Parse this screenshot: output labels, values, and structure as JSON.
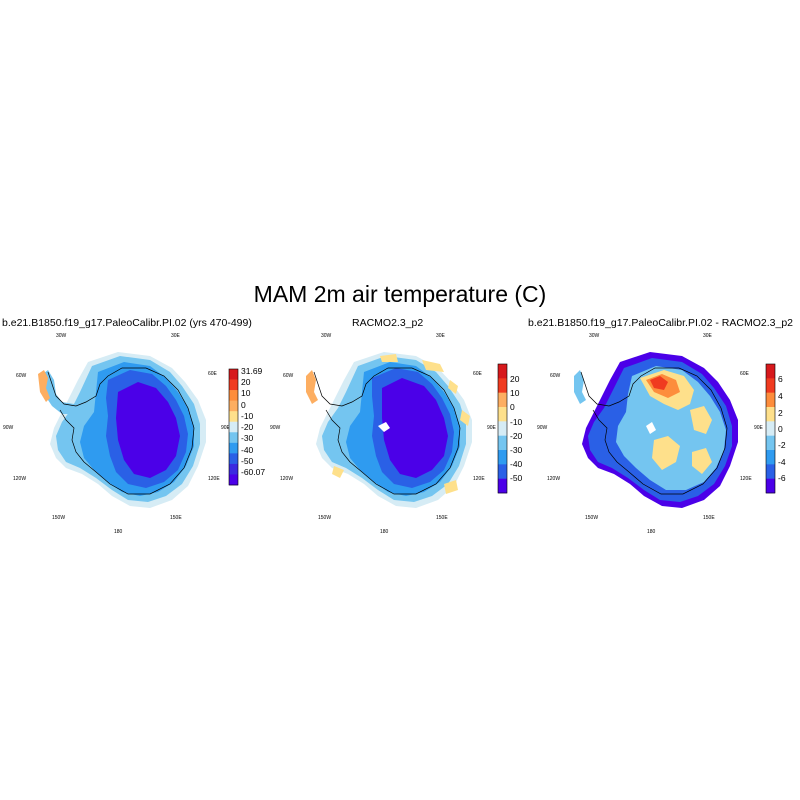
{
  "title": "MAM 2m air temperature (C)",
  "panels": [
    {
      "title": "b.e21.B1850.f19_g17.PaleoCalibr.PI.02 (yrs 470-499)",
      "lon_labels": [
        "30W",
        "30E",
        "60W",
        "60E",
        "90W",
        "90E",
        "120W",
        "120E",
        "150W",
        "150E",
        "180"
      ],
      "colorbar": {
        "labels": [
          "31.69",
          "20",
          "10",
          "0",
          "-10",
          "-20",
          "-30",
          "-40",
          "-50",
          "-60.07"
        ],
        "colors": [
          "#d7191c",
          "#f03b20",
          "#fd8d3c",
          "#fdae61",
          "#fee08b",
          "#d6ecf5",
          "#74c5f0",
          "#2f9bf0",
          "#2a60e6",
          "#3b2ae0",
          "#4b00e8"
        ]
      }
    },
    {
      "title": "RACMO2.3_p2",
      "lon_labels": [
        "30W",
        "30E",
        "60W",
        "60E",
        "90W",
        "90E",
        "120W",
        "120E",
        "150W",
        "150E",
        "180"
      ],
      "colorbar": {
        "labels": [
          "20",
          "10",
          "0",
          "-10",
          "-20",
          "-30",
          "-40",
          "-50"
        ],
        "colors": [
          "#d7191c",
          "#f03b20",
          "#fdae61",
          "#fee08b",
          "#d6ecf5",
          "#74c5f0",
          "#2f9bf0",
          "#2a60e6",
          "#4b00e8"
        ]
      }
    },
    {
      "title": "b.e21.B1850.f19_g17.PaleoCalibr.PI.02 - RACMO2.3_p2",
      "lon_labels": [
        "30W",
        "30E",
        "60W",
        "60E",
        "90W",
        "90E",
        "120W",
        "120E",
        "150W",
        "150E",
        "180"
      ],
      "colorbar": {
        "labels": [
          "6",
          "4",
          "2",
          "0",
          "-2",
          "-4",
          "-6"
        ],
        "colors": [
          "#d7191c",
          "#f03b20",
          "#fd8d3c",
          "#fee08b",
          "#d6ecf5",
          "#74c5f0",
          "#2f9bf0",
          "#2a60e6",
          "#4b00e8"
        ]
      }
    }
  ]
}
